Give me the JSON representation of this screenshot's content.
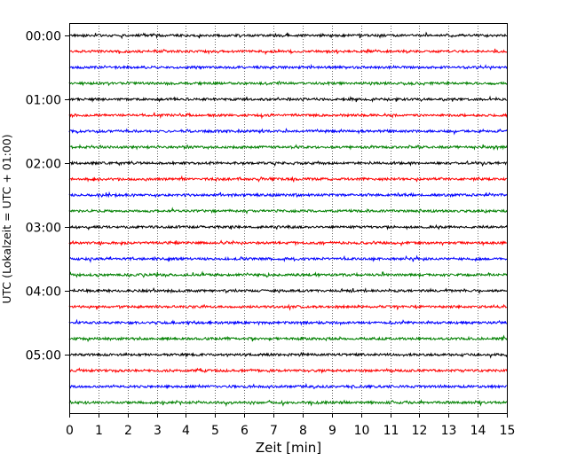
{
  "chart_data": {
    "type": "line",
    "title": "",
    "xlabel": "Zeit  [min]",
    "ylabel": "UTC (Lokalzeit = UTC + 01:00)",
    "xlim": [
      0,
      15
    ],
    "x_ticks": [
      "0",
      "1",
      "2",
      "3",
      "4",
      "5",
      "6",
      "7",
      "8",
      "9",
      "10",
      "11",
      "12",
      "13",
      "14",
      "15"
    ],
    "y_ticks": [
      "00:00",
      "01:00",
      "02:00",
      "03:00",
      "04:00",
      "05:00"
    ],
    "grid": "vertical dotted",
    "trace_interval_minutes": 15,
    "trace_colors": [
      "#000000",
      "#ff0000",
      "#0000ff",
      "#008000"
    ],
    "series": [
      {
        "start": "00:00",
        "color": "#000000"
      },
      {
        "start": "00:15",
        "color": "#ff0000"
      },
      {
        "start": "00:30",
        "color": "#0000ff"
      },
      {
        "start": "00:45",
        "color": "#008000"
      },
      {
        "start": "01:00",
        "color": "#000000"
      },
      {
        "start": "01:15",
        "color": "#ff0000"
      },
      {
        "start": "01:30",
        "color": "#0000ff"
      },
      {
        "start": "01:45",
        "color": "#008000"
      },
      {
        "start": "02:00",
        "color": "#000000"
      },
      {
        "start": "02:15",
        "color": "#ff0000"
      },
      {
        "start": "02:30",
        "color": "#0000ff"
      },
      {
        "start": "02:45",
        "color": "#008000"
      },
      {
        "start": "03:00",
        "color": "#000000"
      },
      {
        "start": "03:15",
        "color": "#ff0000"
      },
      {
        "start": "03:30",
        "color": "#0000ff"
      },
      {
        "start": "03:45",
        "color": "#008000"
      },
      {
        "start": "04:00",
        "color": "#000000"
      },
      {
        "start": "04:15",
        "color": "#ff0000"
      },
      {
        "start": "04:30",
        "color": "#0000ff"
      },
      {
        "start": "04:45",
        "color": "#008000"
      },
      {
        "start": "05:00",
        "color": "#000000"
      },
      {
        "start": "05:15",
        "color": "#ff0000"
      },
      {
        "start": "05:30",
        "color": "#0000ff"
      },
      {
        "start": "05:45",
        "color": "#008000"
      }
    ]
  }
}
